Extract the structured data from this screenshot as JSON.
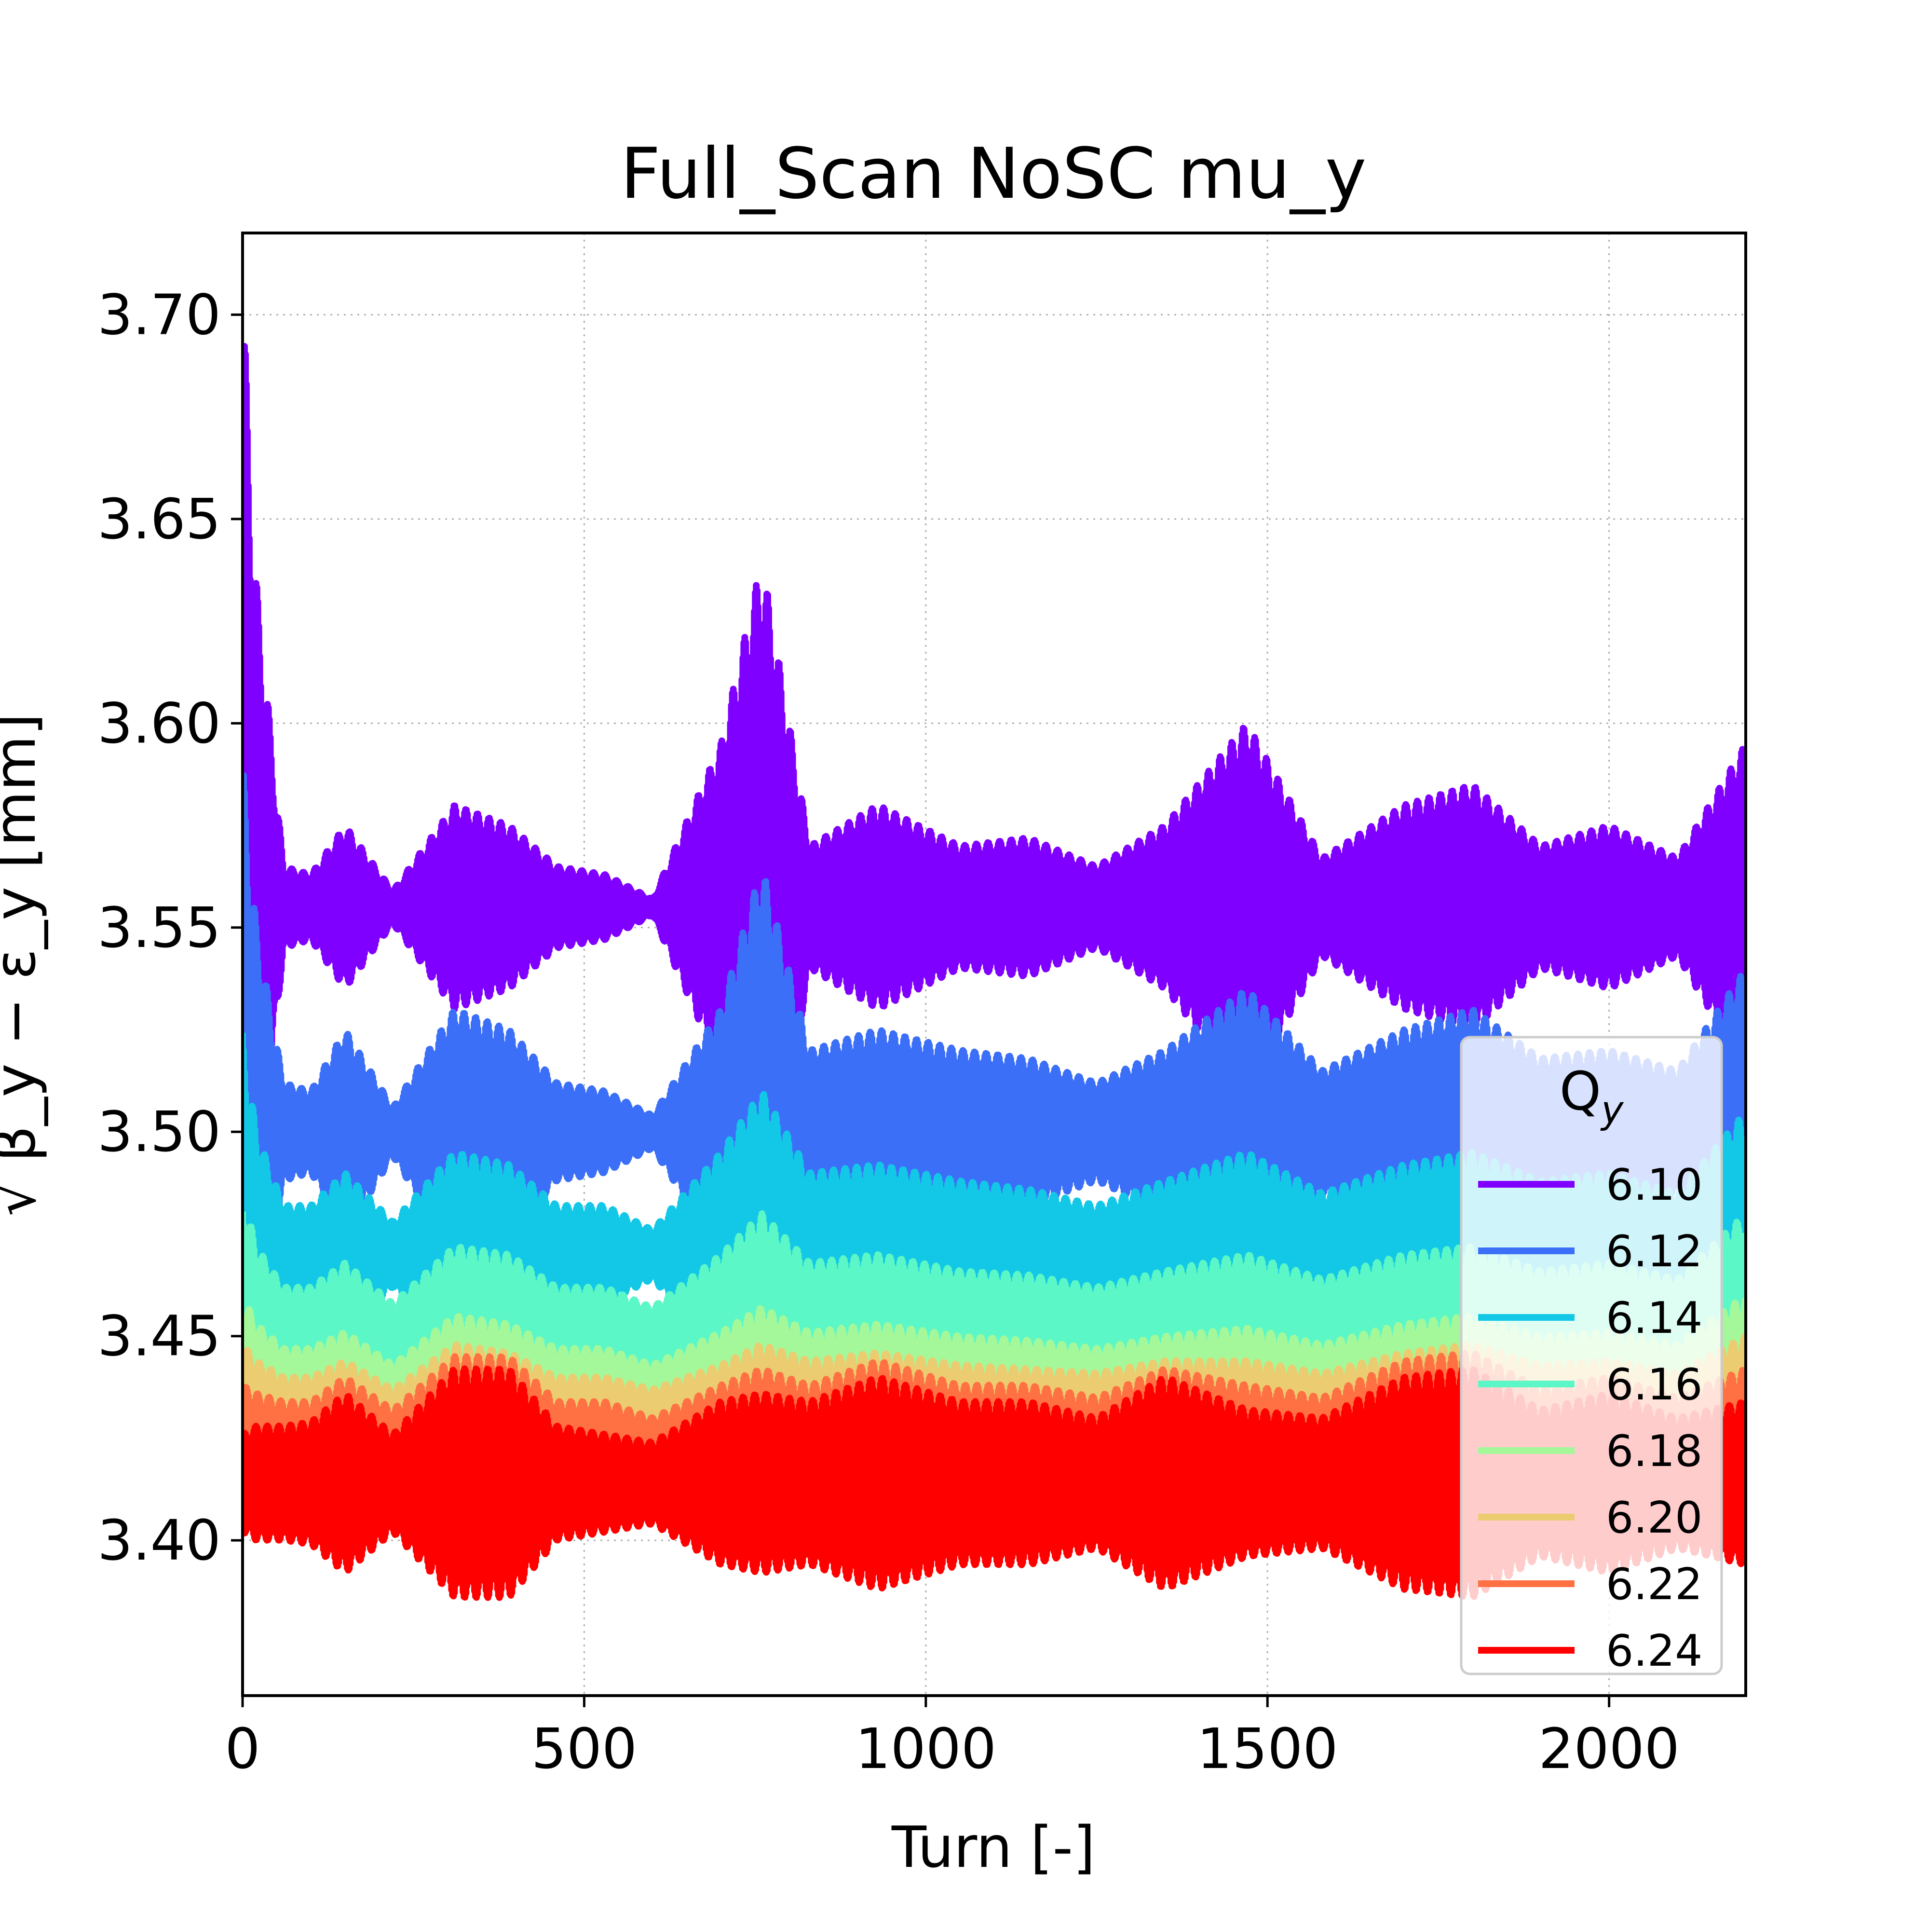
{
  "chart_data": {
    "type": "line",
    "title": "Full_Scan NoSC mu_y",
    "xlabel": "Turn [-]",
    "ylabel": "√ β_y − ε_y [mm]",
    "xlim": [
      0,
      2200
    ],
    "ylim": [
      3.362,
      3.72
    ],
    "x_ticks": [
      0,
      500,
      1000,
      1500,
      2000
    ],
    "x_tick_labels": [
      "0",
      "500",
      "1000",
      "1500",
      "2000"
    ],
    "y_ticks": [
      3.4,
      3.45,
      3.5,
      3.55,
      3.6,
      3.65,
      3.7
    ],
    "y_tick_labels": [
      "3.40",
      "3.45",
      "3.50",
      "3.55",
      "3.60",
      "3.65",
      "3.70"
    ],
    "grid": true,
    "legend": {
      "title": "Q",
      "title_subscript": "y",
      "placement": "lower-right"
    },
    "series": [
      {
        "name": "6.10",
        "color": "#8000ff",
        "mean": 3.555,
        "envelope": {
          "x": [
            0,
            20,
            60,
            100,
            150,
            220,
            310,
            390,
            460,
            530,
            600,
            700,
            760,
            830,
            930,
            1050,
            1150,
            1250,
            1350,
            1470,
            1580,
            1700,
            1800,
            1900,
            2000,
            2100,
            2200
          ],
          "halfwidth": [
            0.15,
            0.08,
            0.01,
            0.008,
            0.02,
            0.004,
            0.025,
            0.02,
            0.01,
            0.008,
            0.002,
            0.04,
            0.085,
            0.015,
            0.025,
            0.015,
            0.017,
            0.01,
            0.02,
            0.045,
            0.012,
            0.025,
            0.03,
            0.015,
            0.02,
            0.012,
            0.04
          ]
        }
      },
      {
        "name": "6.12",
        "color": "#3c6ff7",
        "mean": 3.5,
        "envelope": {
          "x": [
            0,
            20,
            60,
            100,
            150,
            220,
            310,
            390,
            460,
            530,
            600,
            700,
            760,
            830,
            930,
            1050,
            1150,
            1250,
            1350,
            1470,
            1580,
            1700,
            1800,
            1900,
            2000,
            2100,
            2200
          ],
          "halfwidth": [
            0.09,
            0.05,
            0.012,
            0.01,
            0.025,
            0.006,
            0.03,
            0.025,
            0.012,
            0.01,
            0.004,
            0.03,
            0.065,
            0.02,
            0.025,
            0.02,
            0.018,
            0.012,
            0.02,
            0.035,
            0.015,
            0.025,
            0.03,
            0.018,
            0.02,
            0.015,
            0.04
          ]
        }
      },
      {
        "name": "6.14",
        "color": "#12c8e6",
        "mean": 3.47,
        "envelope": {
          "x": [
            0,
            20,
            60,
            100,
            150,
            220,
            310,
            390,
            460,
            530,
            600,
            700,
            760,
            830,
            930,
            1050,
            1150,
            1250,
            1350,
            1470,
            1580,
            1700,
            1800,
            1900,
            2000,
            2100,
            2200
          ],
          "halfwidth": [
            0.055,
            0.03,
            0.012,
            0.012,
            0.02,
            0.008,
            0.025,
            0.022,
            0.012,
            0.012,
            0.006,
            0.025,
            0.04,
            0.02,
            0.022,
            0.018,
            0.016,
            0.012,
            0.018,
            0.025,
            0.015,
            0.022,
            0.025,
            0.018,
            0.02,
            0.015,
            0.035
          ]
        }
      },
      {
        "name": "6.16",
        "color": "#5cf7c6",
        "mean": 3.45,
        "envelope": {
          "x": [
            0,
            20,
            60,
            100,
            150,
            220,
            310,
            390,
            460,
            530,
            600,
            700,
            760,
            830,
            930,
            1050,
            1150,
            1250,
            1350,
            1470,
            1580,
            1700,
            1800,
            1900,
            2000,
            2100,
            2200
          ],
          "halfwidth": [
            0.035,
            0.022,
            0.012,
            0.012,
            0.018,
            0.008,
            0.022,
            0.02,
            0.012,
            0.012,
            0.007,
            0.02,
            0.03,
            0.018,
            0.02,
            0.016,
            0.015,
            0.012,
            0.016,
            0.02,
            0.014,
            0.02,
            0.022,
            0.016,
            0.018,
            0.014,
            0.03
          ]
        }
      },
      {
        "name": "6.18",
        "color": "#a4f89a",
        "mean": 3.435,
        "envelope": {
          "x": [
            0,
            20,
            60,
            100,
            150,
            220,
            310,
            390,
            460,
            530,
            600,
            700,
            760,
            830,
            930,
            1050,
            1150,
            1250,
            1350,
            1470,
            1580,
            1700,
            1800,
            1900,
            2000,
            2100,
            2200
          ],
          "halfwidth": [
            0.025,
            0.018,
            0.012,
            0.012,
            0.016,
            0.008,
            0.02,
            0.018,
            0.012,
            0.012,
            0.008,
            0.016,
            0.022,
            0.016,
            0.018,
            0.015,
            0.014,
            0.012,
            0.015,
            0.017,
            0.013,
            0.018,
            0.02,
            0.015,
            0.016,
            0.013,
            0.025
          ]
        }
      },
      {
        "name": "6.20",
        "color": "#eccc70",
        "mean": 3.428,
        "envelope": {
          "x": [
            0,
            20,
            60,
            100,
            150,
            220,
            310,
            390,
            460,
            530,
            600,
            700,
            760,
            830,
            930,
            1050,
            1150,
            1250,
            1350,
            1470,
            1580,
            1700,
            1800,
            1900,
            2000,
            2100,
            2200
          ],
          "halfwidth": [
            0.02,
            0.016,
            0.012,
            0.012,
            0.016,
            0.009,
            0.02,
            0.018,
            0.012,
            0.012,
            0.009,
            0.015,
            0.02,
            0.016,
            0.018,
            0.015,
            0.014,
            0.013,
            0.016,
            0.016,
            0.013,
            0.018,
            0.02,
            0.015,
            0.016,
            0.013,
            0.022
          ]
        }
      },
      {
        "name": "6.22",
        "color": "#ff7043",
        "mean": 3.42,
        "envelope": {
          "x": [
            0,
            20,
            60,
            100,
            150,
            220,
            310,
            390,
            460,
            530,
            600,
            700,
            760,
            830,
            930,
            1050,
            1150,
            1250,
            1350,
            1470,
            1580,
            1700,
            1800,
            1900,
            2000,
            2100,
            2200
          ],
          "halfwidth": [
            0.018,
            0.016,
            0.014,
            0.014,
            0.02,
            0.012,
            0.025,
            0.025,
            0.014,
            0.014,
            0.01,
            0.018,
            0.022,
            0.018,
            0.024,
            0.018,
            0.018,
            0.015,
            0.022,
            0.018,
            0.015,
            0.024,
            0.026,
            0.017,
            0.02,
            0.015,
            0.022
          ]
        }
      },
      {
        "name": "6.24",
        "color": "#ff0000",
        "mean": 3.414,
        "envelope": {
          "x": [
            0,
            20,
            60,
            100,
            150,
            220,
            310,
            390,
            460,
            530,
            600,
            700,
            760,
            830,
            930,
            1050,
            1150,
            1250,
            1350,
            1470,
            1580,
            1700,
            1800,
            1900,
            2000,
            2100,
            2200
          ],
          "halfwidth": [
            0.012,
            0.014,
            0.014,
            0.015,
            0.022,
            0.012,
            0.028,
            0.028,
            0.014,
            0.012,
            0.01,
            0.02,
            0.022,
            0.02,
            0.026,
            0.02,
            0.02,
            0.016,
            0.026,
            0.018,
            0.016,
            0.026,
            0.028,
            0.018,
            0.022,
            0.016,
            0.02
          ]
        }
      }
    ]
  }
}
